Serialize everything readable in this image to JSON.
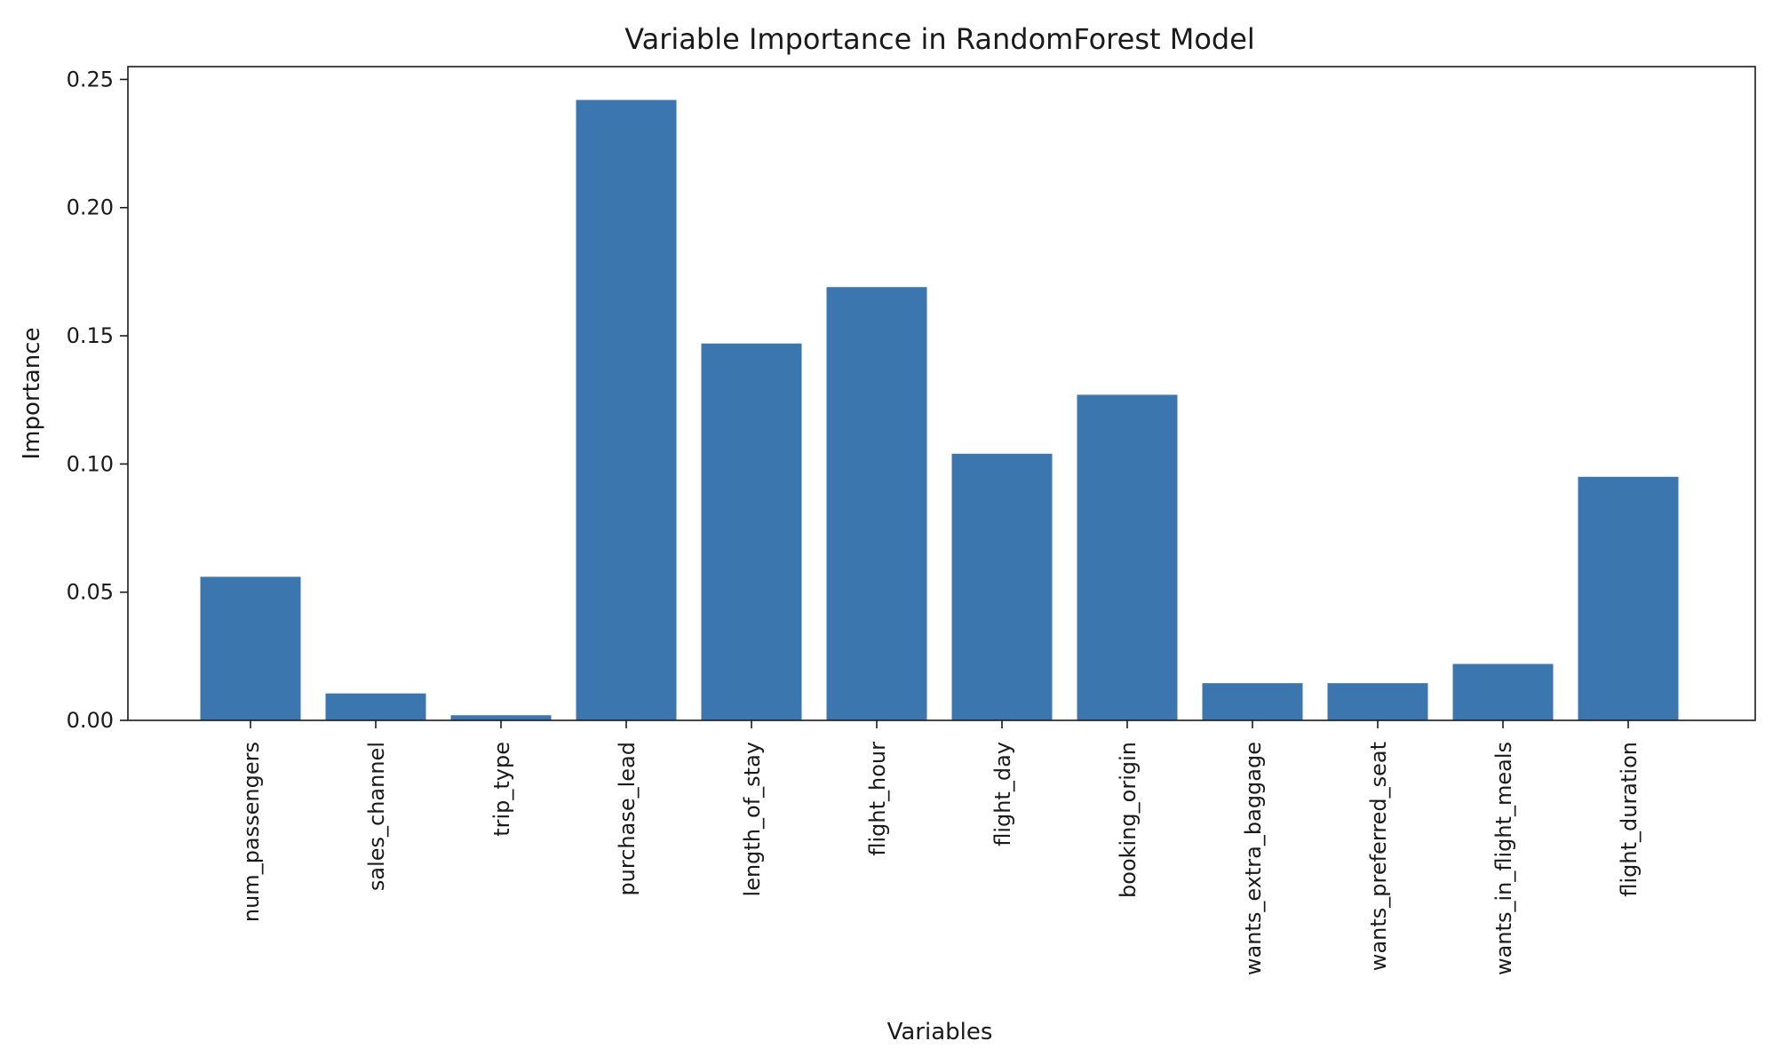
{
  "chart_data": {
    "type": "bar",
    "title": "Variable Importance in RandomForest Model",
    "xlabel": "Variables",
    "ylabel": "Importance",
    "categories": [
      "num_passengers",
      "sales_channel",
      "trip_type",
      "purchase_lead",
      "length_of_stay",
      "flight_hour",
      "flight_day",
      "booking_origin",
      "wants_extra_baggage",
      "wants_preferred_seat",
      "wants_in_flight_meals",
      "flight_duration"
    ],
    "values": [
      0.056,
      0.0105,
      0.002,
      0.242,
      0.147,
      0.169,
      0.104,
      0.127,
      0.0145,
      0.0145,
      0.022,
      0.095
    ],
    "ylim": [
      0,
      0.255
    ],
    "yticks": [
      "0.00",
      "0.05",
      "0.10",
      "0.15",
      "0.20",
      "0.25"
    ],
    "bar_color": "#3b76af",
    "grid": false,
    "legend": "none"
  }
}
